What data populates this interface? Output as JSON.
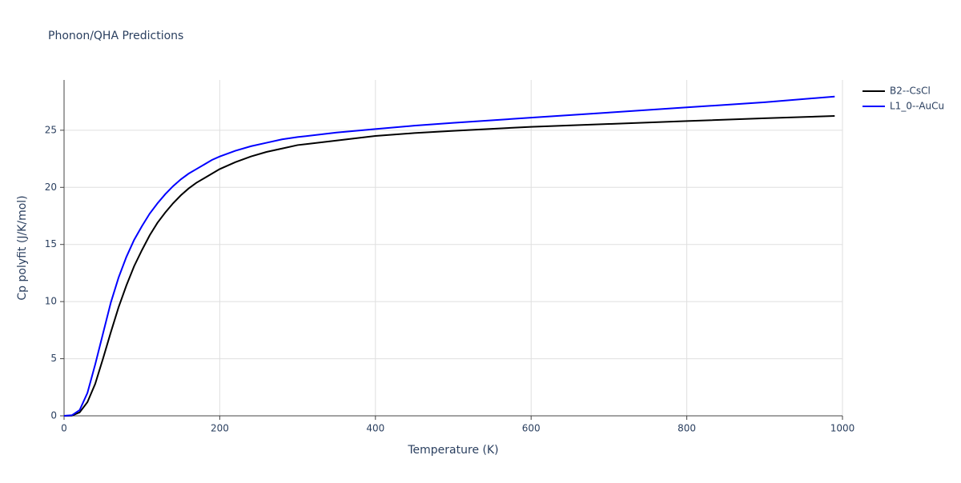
{
  "chart_data": {
    "type": "line",
    "title": "Phonon/QHA Predictions",
    "x_label": "Temperature (K)",
    "y_label": "Cp polyfit (J/K/mol)",
    "x": [
      0,
      10,
      20,
      30,
      40,
      50,
      60,
      70,
      80,
      90,
      100,
      110,
      120,
      130,
      140,
      150,
      160,
      170,
      180,
      190,
      200,
      220,
      240,
      260,
      280,
      300,
      350,
      400,
      450,
      500,
      600,
      700,
      800,
      900,
      990
    ],
    "series": [
      {
        "name": "B2--CsCl",
        "color": "#000000",
        "values": [
          0,
          0.02,
          0.3,
          1.2,
          2.8,
          5.0,
          7.3,
          9.5,
          11.4,
          13.1,
          14.5,
          15.8,
          16.9,
          17.8,
          18.6,
          19.3,
          19.9,
          20.4,
          20.8,
          21.2,
          21.6,
          22.2,
          22.7,
          23.1,
          23.4,
          23.7,
          24.1,
          24.5,
          24.75,
          24.95,
          25.3,
          25.55,
          25.8,
          26.05,
          26.25
        ]
      },
      {
        "name": "L1_0--AuCu",
        "color": "#0000ff",
        "values": [
          0,
          0.05,
          0.5,
          2.0,
          4.5,
          7.2,
          9.9,
          12.1,
          13.9,
          15.4,
          16.6,
          17.7,
          18.6,
          19.4,
          20.1,
          20.7,
          21.2,
          21.6,
          22.0,
          22.4,
          22.7,
          23.2,
          23.6,
          23.9,
          24.2,
          24.4,
          24.8,
          25.1,
          25.4,
          25.65,
          26.1,
          26.55,
          27.0,
          27.45,
          27.95
        ]
      }
    ],
    "xlim": [
      0,
      1000
    ],
    "xticks": [
      0,
      200,
      400,
      600,
      800,
      1000
    ],
    "ylim": [
      0,
      29.4
    ],
    "yticks": [
      0,
      5,
      10,
      15,
      20,
      25
    ],
    "grid": true,
    "legend": "top-right"
  }
}
